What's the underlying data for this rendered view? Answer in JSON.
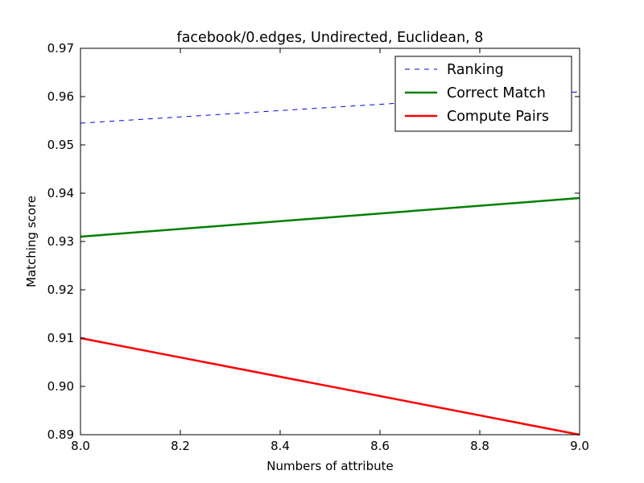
{
  "chart_data": {
    "type": "line",
    "title": "facebook/0.edges, Undirected, Euclidean, 8",
    "xlabel": "Numbers of attribute",
    "ylabel": "Matching score",
    "xlim": [
      8.0,
      9.0
    ],
    "ylim": [
      0.89,
      0.97
    ],
    "xticks": [
      "8.0",
      "8.2",
      "8.4",
      "8.6",
      "8.8",
      "9.0"
    ],
    "yticks": [
      "0.97",
      "0.96",
      "0.95",
      "0.94",
      "0.93",
      "0.92",
      "0.91",
      "0.90",
      "0.89"
    ],
    "grid": false,
    "legend_position": "top-right",
    "series": [
      {
        "name": "Ranking",
        "x": [
          8,
          9
        ],
        "y": [
          0.9545,
          0.961
        ],
        "color": "#0000ff",
        "style": "dashed"
      },
      {
        "name": "Correct Match",
        "x": [
          8,
          9
        ],
        "y": [
          0.931,
          0.939
        ],
        "color": "#008000",
        "style": "solid"
      },
      {
        "name": "Compute Pairs",
        "x": [
          8,
          9
        ],
        "y": [
          0.91,
          0.89
        ],
        "color": "#ff0000",
        "style": "solid"
      }
    ]
  }
}
